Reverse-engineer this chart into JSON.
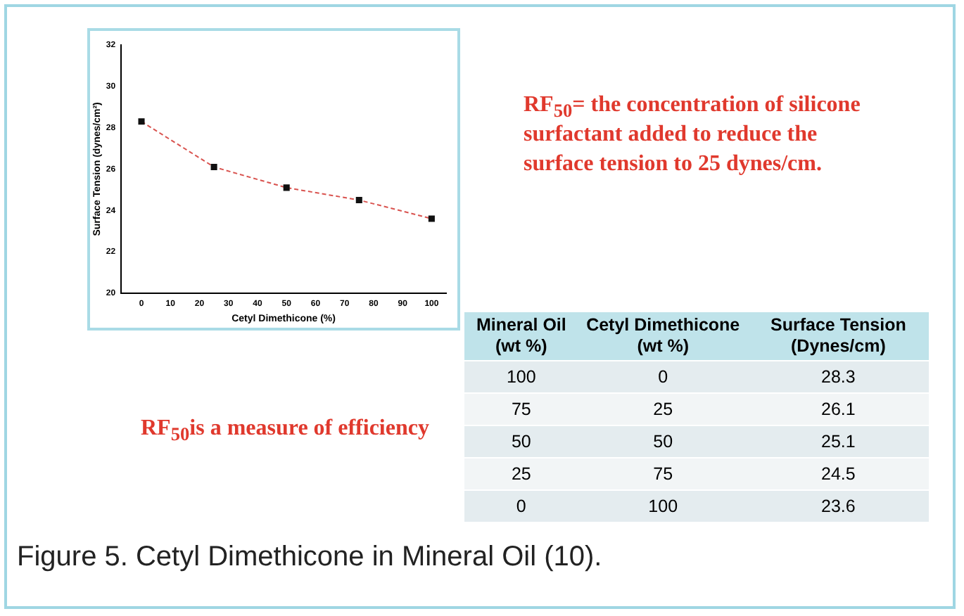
{
  "chart_data": {
    "type": "line",
    "xlabel": "Cetyl Dimethicone (%)",
    "ylabel": "Surface Tension (dynes/cm²)",
    "x": [
      0,
      25,
      50,
      75,
      100
    ],
    "series": [
      {
        "color": "#d9534f",
        "values": [
          28.3,
          26.1,
          25.1,
          24.5,
          23.6
        ]
      }
    ],
    "xlim": [
      -7,
      105
    ],
    "xticks": [
      0,
      10,
      20,
      30,
      40,
      50,
      60,
      70,
      80,
      90,
      100
    ],
    "ylim": [
      20,
      32
    ],
    "yticks": [
      20,
      22,
      24,
      26,
      28,
      30,
      32
    ],
    "grid": false,
    "legend": false,
    "marker": "square",
    "line_style": "dashed",
    "annotations": [
      "RF$_{50}$= the concentration of silicone surfactant added to reduce the surface tension to 25 dynes/cm.",
      "RF$_{50}$is a measure of efficiency",
      "Mineral Oil (wt %)",
      "Cetyl Dimethicone (wt %)",
      "Surface Tension (Dynes/cm)",
      "100",
      "0",
      "28.3",
      "75",
      "25",
      "26.1",
      "50",
      "50",
      "25.1",
      "25",
      "75",
      "24.5",
      "0",
      "100",
      "23.6",
      "Figure 5. Cetyl Dimethicone in Mineral Oil (10)."
    ]
  }
}
